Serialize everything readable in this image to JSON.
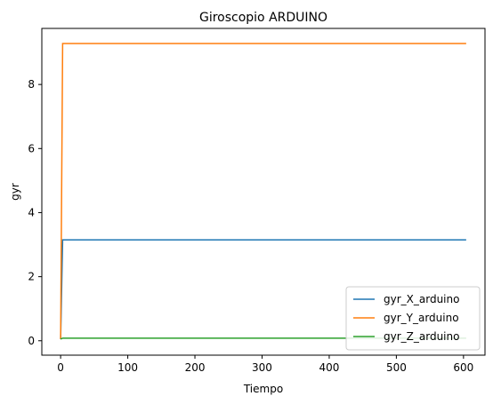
{
  "chart_data": {
    "type": "line",
    "title": "Giroscopio ARDUINO",
    "xlabel": "Tiempo",
    "ylabel": "gyr",
    "xlim": [
      -28,
      632
    ],
    "ylim": [
      -0.45,
      9.75
    ],
    "xticks": [
      0,
      100,
      200,
      300,
      400,
      500,
      600
    ],
    "yticks": [
      0,
      2,
      4,
      6,
      8
    ],
    "grid": false,
    "legend_position": "lower-right",
    "series": [
      {
        "name": "gyr_X_arduino",
        "color": "#1f77b4",
        "x": [
          0,
          3,
          604
        ],
        "y": [
          0.05,
          3.15,
          3.15
        ]
      },
      {
        "name": "gyr_Y_arduino",
        "color": "#ff7f0e",
        "x": [
          0,
          3,
          604
        ],
        "y": [
          0.05,
          9.28,
          9.28
        ]
      },
      {
        "name": "gyr_Z_arduino",
        "color": "#2ca02c",
        "x": [
          0,
          3,
          604
        ],
        "y": [
          0.05,
          0.08,
          0.08
        ]
      }
    ]
  }
}
